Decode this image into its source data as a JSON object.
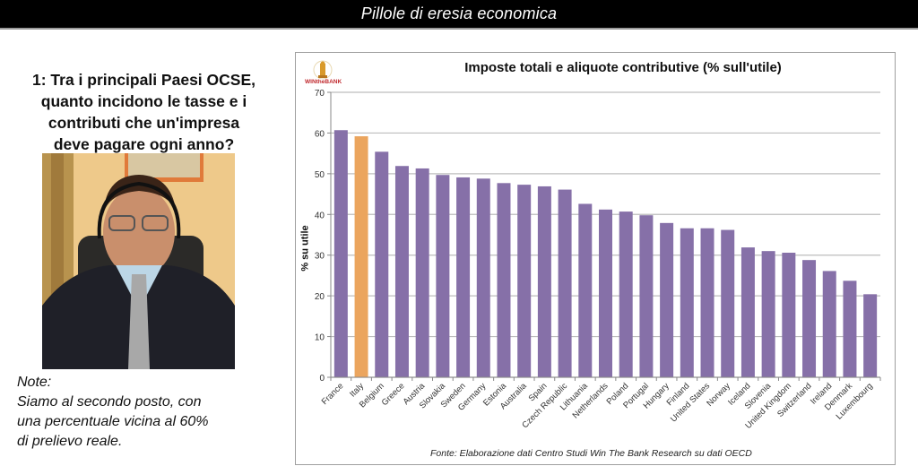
{
  "header": {
    "title": "Pillole di eresia economica"
  },
  "question": {
    "lines": [
      "1: Tra i principali Paesi OCSE,",
      "quanto incidono le tasse e i",
      "contributi che un'impresa",
      "deve pagare ogni anno?"
    ]
  },
  "video": {
    "description": "Speaker with headset in office"
  },
  "notes": {
    "label": "Note:",
    "lines": [
      "Siamo al secondo posto, con",
      "una percentuale vicina al 60%",
      "di prelievo reale."
    ]
  },
  "logo": {
    "text": "WINtheBANK"
  },
  "source": "Fonte: Elaborazione dati Centro Studi Win The Bank Research su dati OECD",
  "colors": {
    "bar": "#8670a8",
    "highlight": "#eba55e",
    "grid": "#bdbdbd"
  },
  "chart_data": {
    "type": "bar",
    "title": "Imposte totali e aliquote contributive (% sull'utile)",
    "xlabel": "",
    "ylabel": "% su utile",
    "ylim": [
      0,
      70
    ],
    "yticks": [
      0,
      10,
      20,
      30,
      40,
      50,
      60,
      70
    ],
    "grid": true,
    "highlight": "Italy",
    "categories": [
      "France",
      "Italy",
      "Belgium",
      "Greece",
      "Austria",
      "Slovakia",
      "Sweden",
      "Germany",
      "Estonia",
      "Australia",
      "Spain",
      "Czech Republic",
      "Lithuania",
      "Netherlands",
      "Poland",
      "Portugal",
      "Hungary",
      "Finland",
      "United States",
      "Norway",
      "Iceland",
      "Slovenia",
      "United Kingdom",
      "Switzerland",
      "Ireland",
      "Denmark",
      "Luxembourg"
    ],
    "values": [
      60.7,
      59.2,
      55.4,
      51.9,
      51.3,
      49.7,
      49.1,
      48.8,
      47.7,
      47.3,
      46.9,
      46.1,
      42.6,
      41.2,
      40.7,
      39.8,
      37.9,
      36.6,
      36.6,
      36.2,
      31.9,
      31.0,
      30.6,
      28.8,
      26.1,
      23.7,
      20.4
    ]
  }
}
